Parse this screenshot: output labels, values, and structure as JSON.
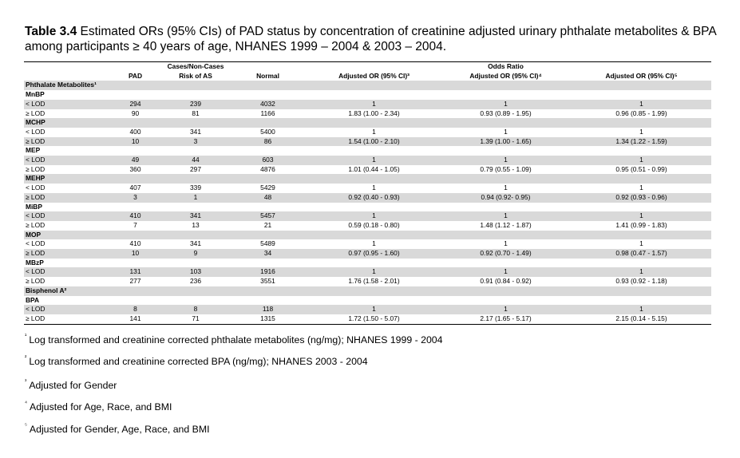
{
  "caption": {
    "label": "Table 3.4",
    "text": " Estimated ORs (95% CIs) of PAD status by concentration of creatinine adjusted urinary phthalate metabolites & BPA among participants ≥ 40 years of age, NHANES 1999 – 2004 & 2003 – 2004."
  },
  "table": {
    "group_headers": {
      "cases": "Cases/Non-Cases",
      "odds": "Odds Ratio"
    },
    "col_headers": [
      "PAD",
      "Risk of AS",
      "Normal",
      "Adjusted OR (95% CI)³",
      "Adjusted OR (95% CI)⁴",
      "Adjusted OR (95% CI)⁵"
    ],
    "section_phthalate": "Phthalate Metabolites¹",
    "section_bpa": "Bisphenol A²",
    "groups": [
      {
        "name": "MnBP",
        "rows": [
          {
            "label": "< LOD",
            "vals": [
              "294",
              "239",
              "4032",
              "1",
              "1",
              "1"
            ]
          },
          {
            "label": "≥ LOD",
            "vals": [
              "90",
              "81",
              "1166",
              "1.83 (1.00 - 2.34)",
              "0.93 (0.89 - 1.95)",
              "0.96 (0.85 - 1.99)"
            ]
          }
        ]
      },
      {
        "name": "MCHP",
        "rows": [
          {
            "label": "< LOD",
            "vals": [
              "400",
              "341",
              "5400",
              "1",
              "1",
              "1"
            ]
          },
          {
            "label": "≥ LOD",
            "vals": [
              "10",
              "3",
              "86",
              "1.54 (1.00 - 2.10)",
              "1.39 (1.00 - 1.65)",
              "1.34 (1.22 - 1.59)"
            ]
          }
        ]
      },
      {
        "name": "MEP",
        "rows": [
          {
            "label": "< LOD",
            "vals": [
              "49",
              "44",
              "603",
              "1",
              "1",
              "1"
            ]
          },
          {
            "label": "≥ LOD",
            "vals": [
              "360",
              "297",
              "4876",
              "1.01 (0.44 - 1.05)",
              "0.79 (0.55 - 1.09)",
              "0.95 (0.51 - 0.99)"
            ]
          }
        ]
      },
      {
        "name": "MEHP",
        "rows": [
          {
            "label": "< LOD",
            "vals": [
              "407",
              "339",
              "5429",
              "1",
              "1",
              "1"
            ]
          },
          {
            "label": "≥ LOD",
            "vals": [
              "3",
              "1",
              "48",
              "0.92 (0.40 - 0.93)",
              "0.94 (0.92- 0.95)",
              "0.92 (0.93 - 0.96)"
            ]
          }
        ]
      },
      {
        "name": "MiBP",
        "rows": [
          {
            "label": "< LOD",
            "vals": [
              "410",
              "341",
              "5457",
              "1",
              "1",
              "1"
            ]
          },
          {
            "label": "≥ LOD",
            "vals": [
              "7",
              "13",
              "21",
              "0.59 (0.18 - 0.80)",
              "1.48 (1.12 - 1.87)",
              "1.41 (0.99 - 1.83)"
            ]
          }
        ]
      },
      {
        "name": "MOP",
        "rows": [
          {
            "label": "< LOD",
            "vals": [
              "410",
              "341",
              "5489",
              "1",
              "1",
              "1"
            ]
          },
          {
            "label": "≥ LOD",
            "vals": [
              "10",
              "9",
              "34",
              "0.97 (0.95 - 1.60)",
              "0.92 (0.70 - 1.49)",
              "0.98 (0.47 - 1.57)"
            ]
          }
        ]
      },
      {
        "name": "MBzP",
        "rows": [
          {
            "label": "< LOD",
            "vals": [
              "131",
              "103",
              "1916",
              "1",
              "1",
              "1"
            ]
          },
          {
            "label": "≥ LOD",
            "vals": [
              "277",
              "236",
              "3551",
              "1.76 (1.58 - 2.01)",
              "0.91 (0.84 - 0.92)",
              "0.93 (0.92 - 1.18)"
            ]
          }
        ]
      }
    ],
    "bpa_group": {
      "name": "BPA",
      "rows": [
        {
          "label": "< LOD",
          "vals": [
            "8",
            "8",
            "118",
            "1",
            "1",
            "1"
          ]
        },
        {
          "label": "≥ LOD",
          "vals": [
            "141",
            "71",
            "1315",
            "1.72 (1.50 - 5.07)",
            "2.17 (1.65 - 5.17)",
            "2.15 (0.14 - 5.15)"
          ]
        }
      ]
    }
  },
  "footnotes": [
    {
      "mark": "¹",
      "text": "Log transformed and creatinine corrected phthalate metabolites (ng/mg); NHANES 1999 - 2004"
    },
    {
      "mark": "²",
      "text": "Log transformed and creatinine corrected BPA (ng/mg); NHANES 2003 - 2004"
    },
    {
      "mark": "³",
      "text": "Adjusted for Gender"
    },
    {
      "mark": "⁴",
      "text": "Adjusted for Age, Race, and BMI"
    },
    {
      "mark": "⁵",
      "text": "Adjusted for Gender, Age, Race, and BMI"
    }
  ]
}
